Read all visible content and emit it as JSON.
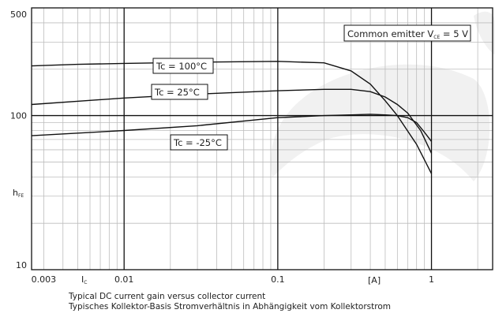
{
  "chart_data": {
    "type": "line",
    "xscale": "log",
    "yscale": "log",
    "xlim": [
      0.0025,
      2.5
    ],
    "ylim": [
      10,
      500
    ],
    "y_ticks": [
      {
        "value": 500,
        "label": "500"
      },
      {
        "value": 100,
        "label": "100"
      },
      {
        "value": 10,
        "label": "10"
      }
    ],
    "x_ticks": [
      {
        "value": 0.003,
        "label": "0.003"
      },
      {
        "value": 0.01,
        "label": "0.01"
      },
      {
        "value": 0.1,
        "label": "0.1"
      },
      {
        "value": 1,
        "label": "1"
      }
    ],
    "ylabel": {
      "main": "h",
      "sub": "FE"
    },
    "xlabel": {
      "main": "I",
      "sub": "C"
    },
    "xunit": "[A]",
    "condition": {
      "prefix": "Common emitter V",
      "sub": "CE",
      "suffix": " = 5 V"
    },
    "series": [
      {
        "name": "Tc = 100°C",
        "x": [
          0.0025,
          0.005,
          0.01,
          0.03,
          0.1,
          0.2,
          0.3,
          0.4,
          0.5,
          0.6,
          0.8,
          1.0
        ],
        "y": [
          210,
          215,
          218,
          222,
          225,
          220,
          195,
          160,
          125,
          100,
          65,
          42
        ]
      },
      {
        "name": "Tc = 25°C",
        "x": [
          0.0025,
          0.01,
          0.03,
          0.1,
          0.2,
          0.3,
          0.4,
          0.5,
          0.6,
          0.7,
          0.85,
          1.0
        ],
        "y": [
          118,
          130,
          138,
          145,
          148,
          148,
          143,
          132,
          118,
          104,
          80,
          57
        ]
      },
      {
        "name": "Tc = -25°C",
        "x": [
          0.0025,
          0.01,
          0.03,
          0.1,
          0.2,
          0.3,
          0.4,
          0.5,
          0.6,
          0.7,
          0.8,
          0.9,
          1.0
        ],
        "y": [
          74,
          80,
          86,
          97,
          100,
          101,
          102,
          101,
          100,
          97,
          90,
          78,
          68
        ]
      }
    ],
    "caption_lines": [
      "Typical DC current gain versus collector current",
      "Typisches Kollektor-Basis Stromverhältnis in Abhängigkeit vom Kollektorstrom"
    ]
  }
}
